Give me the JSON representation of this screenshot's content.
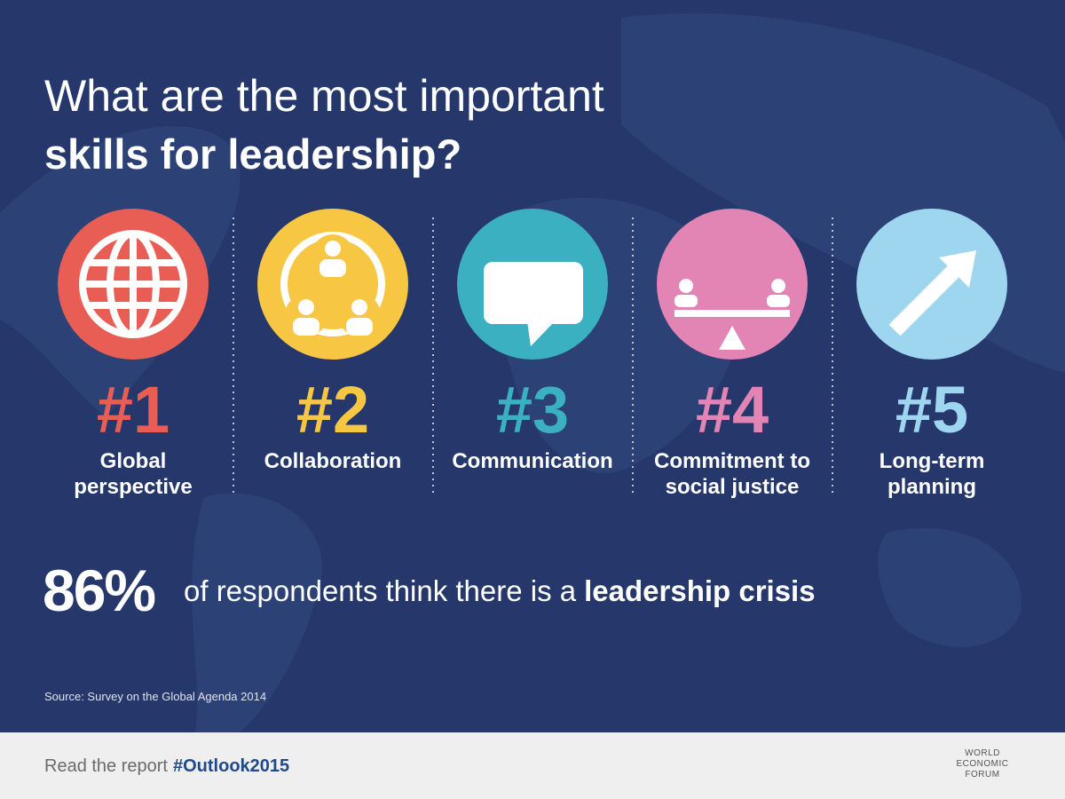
{
  "header": {
    "title_line1": "What are the most important",
    "title_line2": "skills for leadership?"
  },
  "skills": [
    {
      "rank": "#1",
      "label_lines": [
        "Global",
        "perspective"
      ]
    },
    {
      "rank": "#2",
      "label_lines": [
        "Collaboration"
      ]
    },
    {
      "rank": "#3",
      "label_lines": [
        "Communication"
      ]
    },
    {
      "rank": "#4",
      "label_lines": [
        "Commitment to",
        "social justice"
      ]
    },
    {
      "rank": "#5",
      "label_lines": [
        "Long-term",
        "planning"
      ]
    }
  ],
  "stat": {
    "value": "86%",
    "text": "of respondents think there is a",
    "emphasis": "leadership crisis"
  },
  "source": "Source: Survey on the Global Agenda 2014",
  "footer": {
    "text": "Read the report",
    "hashtag": "#Outlook2015",
    "logo": [
      "WORLD",
      "ECONOMIC",
      "FORUM"
    ]
  }
}
